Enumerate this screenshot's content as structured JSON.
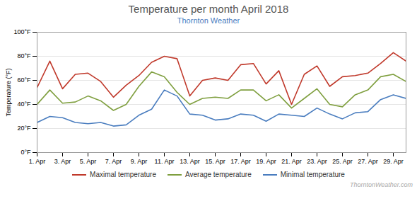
{
  "chart_data": {
    "type": "line",
    "title": "Temperature per month April 2018",
    "subtitle": "Thornton Weather",
    "annotations": [
      "ThorntonWeather.com"
    ],
    "ylabel": "Temperature (°F)",
    "x": [
      1,
      2,
      3,
      4,
      5,
      6,
      7,
      8,
      9,
      10,
      11,
      12,
      13,
      14,
      15,
      16,
      17,
      18,
      19,
      20,
      21,
      22,
      23,
      24,
      25,
      26,
      27,
      28,
      29,
      30
    ],
    "series": [
      {
        "name": "Maximal temperature",
        "color": "#c0392b",
        "values": [
          54,
          76,
          53,
          65,
          66,
          59,
          46,
          56,
          64,
          75,
          80,
          78,
          47,
          60,
          62,
          60,
          73,
          74,
          57,
          68,
          40,
          65,
          72,
          55,
          63,
          64,
          66,
          74,
          83,
          76
        ]
      },
      {
        "name": "Average temperature",
        "color": "#7f9f3f",
        "values": [
          40,
          52,
          41,
          42,
          47,
          43,
          35,
          40,
          55,
          67,
          63,
          50,
          40,
          45,
          46,
          45,
          52,
          52,
          43,
          48,
          37,
          45,
          53,
          40,
          38,
          48,
          52,
          63,
          65,
          59
        ]
      },
      {
        "name": "Minimal temperature",
        "color": "#4a7dbf",
        "values": [
          25,
          30,
          29,
          25,
          24,
          25,
          22,
          23,
          31,
          36,
          52,
          47,
          32,
          31,
          27,
          28,
          32,
          31,
          26,
          32,
          31,
          30,
          37,
          32,
          28,
          33,
          34,
          44,
          48,
          45
        ]
      }
    ],
    "xlim": [
      1,
      30
    ],
    "xticks": [
      {
        "value": 1,
        "label": "1. Apr"
      },
      {
        "value": 3,
        "label": "3. Apr"
      },
      {
        "value": 5,
        "label": "5. Apr"
      },
      {
        "value": 7,
        "label": "7. Apr"
      },
      {
        "value": 9,
        "label": "9. Apr"
      },
      {
        "value": 11,
        "label": "11. Apr"
      },
      {
        "value": 13,
        "label": "13. Apr"
      },
      {
        "value": 15,
        "label": "15. Apr"
      },
      {
        "value": 17,
        "label": "17. Apr"
      },
      {
        "value": 19,
        "label": "19. Apr"
      },
      {
        "value": 21,
        "label": "21. Apr"
      },
      {
        "value": 23,
        "label": "23. Apr"
      },
      {
        "value": 25,
        "label": "25. Apr"
      },
      {
        "value": 27,
        "label": "27. Apr"
      },
      {
        "value": 29,
        "label": "29. Apr"
      }
    ],
    "ylim": [
      0,
      100
    ],
    "yticks": [
      {
        "value": 0,
        "label": "0°F"
      },
      {
        "value": 20,
        "label": "20°F"
      },
      {
        "value": 40,
        "label": "40°F"
      },
      {
        "value": 60,
        "label": "60°F"
      },
      {
        "value": 80,
        "label": "80°F"
      },
      {
        "value": 100,
        "label": "100°F"
      }
    ],
    "grid": "y",
    "legend": "bottom"
  }
}
